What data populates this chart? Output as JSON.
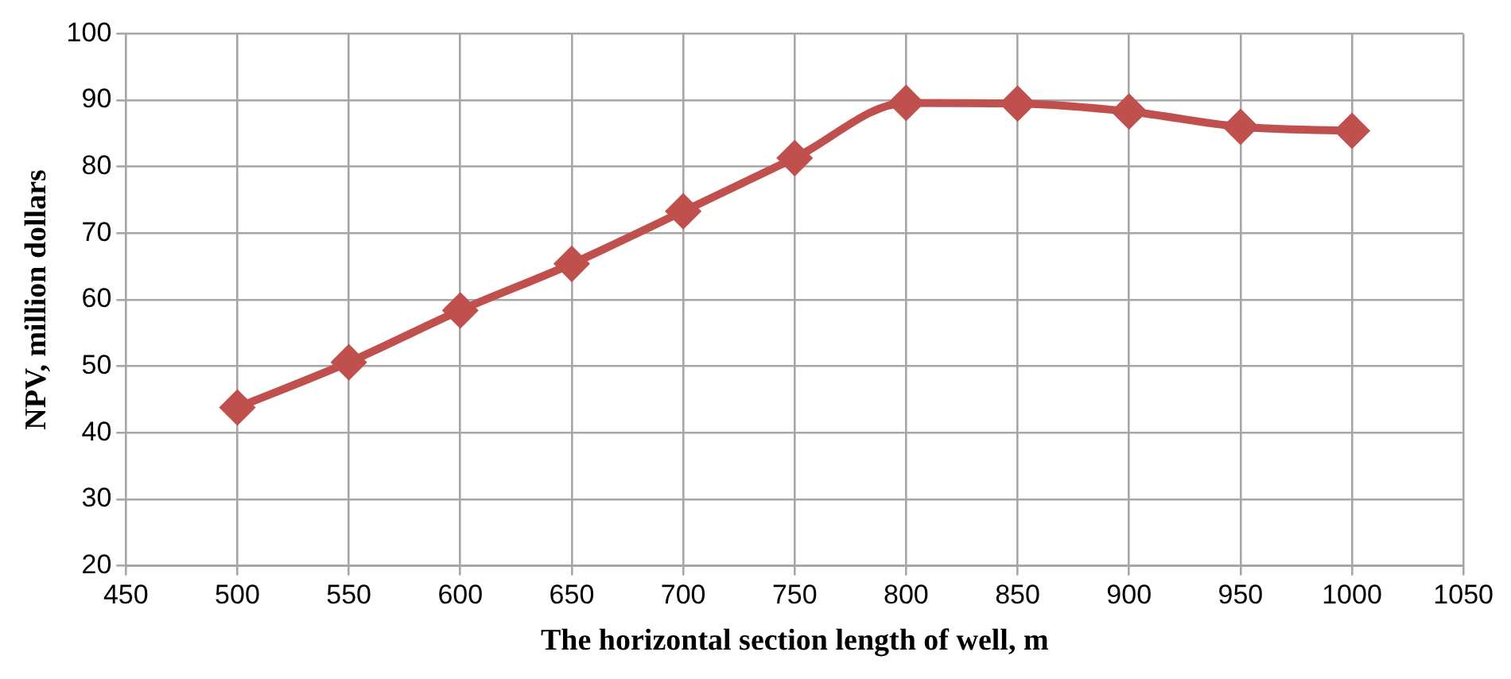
{
  "chart_data": {
    "type": "line",
    "xlabel": "The horizontal section length of well, m",
    "ylabel": "NPV, million dollars",
    "x": [
      500,
      550,
      600,
      650,
      700,
      750,
      800,
      850,
      900,
      950,
      1000
    ],
    "series": [
      {
        "color": "#c0504d",
        "values": [
          43.8,
          50.6,
          58.4,
          65.4,
          73.3,
          81.3,
          89.6,
          89.5,
          88.3,
          86.0,
          85.4
        ]
      }
    ],
    "xlim": [
      450,
      1050
    ],
    "xticks": [
      450,
      500,
      550,
      600,
      650,
      700,
      750,
      800,
      850,
      900,
      950,
      1000,
      1050
    ],
    "ylim": [
      20,
      100
    ],
    "yticks": [
      20,
      30,
      40,
      50,
      60,
      70,
      80,
      90,
      100
    ],
    "grid": true,
    "legend": false,
    "marker": "diamond",
    "line_style": "solid"
  }
}
